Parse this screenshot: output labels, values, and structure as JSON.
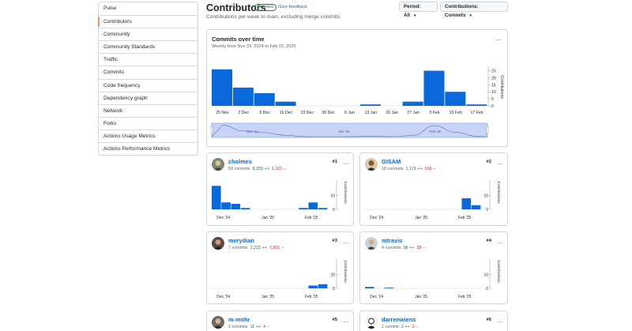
{
  "sidebar": {
    "items": [
      {
        "label": "Pulse"
      },
      {
        "label": "Contributors"
      },
      {
        "label": "Community"
      },
      {
        "label": "Community Standards"
      },
      {
        "label": "Traffic"
      },
      {
        "label": "Commits"
      },
      {
        "label": "Code frequency"
      },
      {
        "label": "Dependency graph"
      },
      {
        "label": "Network"
      },
      {
        "label": "Forks"
      },
      {
        "label": "Actions Usage Metrics"
      },
      {
        "label": "Actions Performance Metrics"
      }
    ],
    "active_index": 1
  },
  "header": {
    "title": "Contributors",
    "badge": "Preview",
    "feedback": "Give feedback",
    "subtitle": "Contributions per week to main, excluding merge commits",
    "period_select": "Period: All",
    "contrib_select": "Contributions: Commits"
  },
  "main_chart": {
    "title": "Commits over time",
    "subtitle": "Weekly from Nov 23, 2024 to Feb 15, 2025",
    "menu": "···",
    "ylabel": "Contributions",
    "color": "#0969da"
  },
  "chart_data": [
    {
      "type": "bar",
      "title": "Commits over time",
      "ylabel": "Contributions",
      "ylim": [
        0,
        27
      ],
      "yticks": [
        0,
        5,
        10,
        15,
        20,
        25
      ],
      "x_tick_labels": [
        "25 Nov",
        "2 Dec",
        "9 Dec",
        "16 Dec",
        "23 Dec",
        "30 Dec",
        "6 Jan",
        "13 Jan",
        "20 Jan",
        "27 Jan",
        "3 Feb",
        "10 Feb",
        "17 Feb"
      ],
      "values": [
        26,
        13,
        9,
        3,
        0,
        0,
        0,
        1,
        0,
        3,
        25,
        10,
        1
      ]
    },
    {
      "type": "bar",
      "contributor": "cholmes",
      "ylabel": "Contributions",
      "ylim": [
        0,
        20
      ],
      "yticks": [
        0,
        10
      ],
      "x_tick_labels": [
        "Dec '24",
        "Jan '25",
        "Feb '25"
      ],
      "values": [
        17,
        5,
        4,
        1,
        0,
        0,
        0,
        0,
        0,
        1,
        5,
        1
      ]
    },
    {
      "type": "bar",
      "contributor": "GISAM",
      "ylabel": "Contributions",
      "ylim": [
        0,
        20
      ],
      "yticks": [
        0,
        10
      ],
      "x_tick_labels": [
        "Dec '24",
        "Jan '25",
        "Feb '25"
      ],
      "values": [
        0,
        0,
        0,
        0,
        0,
        0,
        0,
        0,
        0,
        0,
        8,
        3
      ]
    },
    {
      "type": "bar",
      "contributor": "merydian",
      "ylabel": "Contributions",
      "ylim": [
        0,
        20
      ],
      "yticks": [
        0,
        10
      ],
      "x_tick_labels": [
        "Dec '24",
        "Jan '25",
        "Feb '25"
      ],
      "values": [
        0,
        0,
        0,
        0,
        0,
        0,
        0,
        0,
        0,
        0,
        2,
        3
      ]
    },
    {
      "type": "bar",
      "contributor": "mtravis",
      "ylabel": "Contributions",
      "ylim": [
        0,
        20
      ],
      "yticks": [
        0,
        10
      ],
      "x_tick_labels": [
        "Dec '24",
        "Jan '25",
        "Feb '25"
      ],
      "values": [
        1,
        0,
        0.5,
        0,
        0,
        0,
        0,
        0,
        0,
        0,
        0,
        0
      ]
    }
  ],
  "contributors": [
    {
      "name": "cholmes",
      "commits": "59 commits",
      "additions": "8,333 ++",
      "deletions": "1,161 --",
      "rank": "#1"
    },
    {
      "name": "GISAM",
      "commits": "18 commits",
      "additions": "1,171 ++",
      "deletions": "516 --",
      "rank": "#2"
    },
    {
      "name": "merydian",
      "commits": "7 commits",
      "additions": "2,222 ++",
      "deletions": "7,501 --",
      "rank": "#3"
    },
    {
      "name": "mtravis",
      "commits": "4 commits",
      "additions": "98 ++",
      "deletions": "38 --",
      "rank": "#4"
    },
    {
      "name": "m-mohr",
      "commits": "2 commits",
      "additions": "11 ++",
      "deletions": "4 --",
      "rank": "#5"
    },
    {
      "name": "darrenwiens",
      "commits": "1 commit",
      "additions": "2 ++",
      "deletions": "0 --",
      "rank": "#6"
    }
  ],
  "menu_icon": "···"
}
